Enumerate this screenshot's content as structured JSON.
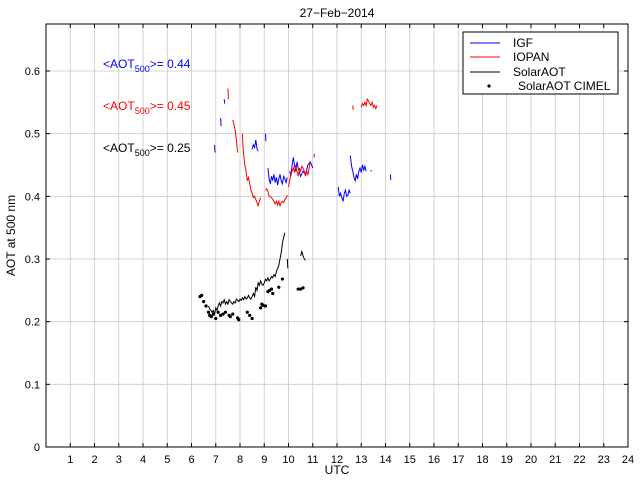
{
  "chart_data": {
    "type": "line",
    "title": "27−Feb−2014",
    "xlabel": "UTC",
    "ylabel": "AOT at 500 nm",
    "xlim": [
      0,
      24
    ],
    "ylim": [
      0,
      0.675
    ],
    "xticks": [
      1,
      2,
      3,
      4,
      5,
      6,
      7,
      8,
      9,
      10,
      11,
      12,
      13,
      14,
      15,
      16,
      17,
      18,
      19,
      20,
      21,
      22,
      23,
      24
    ],
    "yticks": [
      0,
      0.1,
      0.2,
      0.3,
      0.4,
      0.5,
      0.6
    ],
    "xtick_labels": [
      "1",
      "2",
      "3",
      "4",
      "5",
      "6",
      "7",
      "8",
      "9",
      "10",
      "11",
      "12",
      "13",
      "14",
      "15",
      "16",
      "17",
      "18",
      "19",
      "20",
      "21",
      "22",
      "23",
      "24"
    ],
    "ytick_labels": [
      "0",
      "0.1",
      "0.2",
      "0.3",
      "0.4",
      "0.5",
      "0.6"
    ],
    "grid": true,
    "legend_position": "top-right",
    "legend": [
      "IGF",
      "IOPAN",
      "SolarAOT",
      "SolarAOT CIMEL"
    ],
    "annotations": [
      {
        "prefix": "<AOT",
        "sub": "500",
        "suffix": ">= 0.44",
        "color": "#0000ff"
      },
      {
        "prefix": "<AOT",
        "sub": "500",
        "suffix": ">= 0.45",
        "color": "#ff0000"
      },
      {
        "prefix": "<AOT",
        "sub": "500",
        "suffix": ">= 0.25",
        "color": "#000000"
      }
    ],
    "series": [
      {
        "name": "IGF",
        "style": "line",
        "color": "#0000ff",
        "segments": [
          [
            [
              6.95,
              0.482
            ],
            [
              6.97,
              0.47
            ]
          ],
          [
            [
              7.2,
              0.525
            ],
            [
              7.22,
              0.512
            ]
          ],
          [
            [
              7.35,
              0.555
            ],
            [
              7.37,
              0.548
            ]
          ],
          [
            [
              8.5,
              0.475
            ],
            [
              8.55,
              0.482
            ],
            [
              8.6,
              0.478
            ],
            [
              8.65,
              0.49
            ],
            [
              8.7,
              0.476
            ],
            [
              8.75,
              0.472
            ]
          ],
          [
            [
              9.05,
              0.5
            ],
            [
              9.07,
              0.488
            ]
          ],
          [
            [
              9.15,
              0.445
            ],
            [
              9.2,
              0.428
            ],
            [
              9.25,
              0.42
            ],
            [
              9.3,
              0.432
            ],
            [
              9.35,
              0.426
            ],
            [
              9.4,
              0.435
            ],
            [
              9.45,
              0.422
            ],
            [
              9.5,
              0.43
            ],
            [
              9.55,
              0.418
            ],
            [
              9.6,
              0.428
            ],
            [
              9.65,
              0.435
            ],
            [
              9.7,
              0.425
            ],
            [
              9.75,
              0.42
            ],
            [
              9.8,
              0.432
            ],
            [
              9.85,
              0.428
            ],
            [
              9.9,
              0.422
            ],
            [
              9.95,
              0.43
            ]
          ],
          [
            [
              10.05,
              0.44
            ],
            [
              10.1,
              0.432
            ],
            [
              10.15,
              0.45
            ],
            [
              10.2,
              0.462
            ],
            [
              10.25,
              0.448
            ],
            [
              10.3,
              0.44
            ],
            [
              10.35,
              0.455
            ],
            [
              10.4,
              0.445
            ],
            [
              10.5,
              0.432
            ],
            [
              10.6,
              0.44
            ],
            [
              10.7,
              0.435
            ],
            [
              10.8,
              0.45
            ],
            [
              10.9,
              0.455
            ],
            [
              11.0,
              0.445
            ]
          ],
          [
            [
              12.05,
              0.415
            ],
            [
              12.1,
              0.4
            ],
            [
              12.15,
              0.405
            ],
            [
              12.2,
              0.398
            ],
            [
              12.25,
              0.392
            ],
            [
              12.3,
              0.405
            ],
            [
              12.35,
              0.41
            ],
            [
              12.4,
              0.4
            ],
            [
              12.45,
              0.402
            ],
            [
              12.5,
              0.41
            ],
            [
              12.55,
              0.405
            ]
          ],
          [
            [
              12.55,
              0.465
            ],
            [
              12.6,
              0.448
            ],
            [
              12.65,
              0.44
            ],
            [
              12.7,
              0.43
            ],
            [
              12.75,
              0.425
            ],
            [
              12.8,
              0.435
            ],
            [
              12.85,
              0.428
            ],
            [
              12.9,
              0.44
            ],
            [
              12.95,
              0.445
            ],
            [
              13.0,
              0.438
            ],
            [
              13.05,
              0.45
            ],
            [
              13.1,
              0.442
            ],
            [
              13.15,
              0.448
            ],
            [
              13.2,
              0.44
            ]
          ],
          [
            [
              13.4,
              0.442
            ],
            [
              13.42,
              0.44
            ]
          ],
          [
            [
              14.2,
              0.435
            ],
            [
              14.22,
              0.426
            ]
          ]
        ]
      },
      {
        "name": "IOPAN",
        "style": "line",
        "color": "#ff0000",
        "segments": [
          [
            [
              7.5,
              0.572
            ],
            [
              7.52,
              0.555
            ]
          ],
          [
            [
              7.7,
              0.522
            ],
            [
              7.75,
              0.515
            ],
            [
              7.8,
              0.505
            ],
            [
              7.85,
              0.49
            ],
            [
              7.9,
              0.47
            ]
          ],
          [
            [
              8.1,
              0.5
            ],
            [
              8.12,
              0.48
            ],
            [
              8.15,
              0.468
            ],
            [
              8.2,
              0.45
            ],
            [
              8.25,
              0.44
            ],
            [
              8.3,
              0.425
            ],
            [
              8.35,
              0.43
            ],
            [
              8.4,
              0.42
            ],
            [
              8.45,
              0.41
            ],
            [
              8.5,
              0.405
            ],
            [
              8.55,
              0.398
            ],
            [
              8.6,
              0.4
            ],
            [
              8.65,
              0.395
            ],
            [
              8.7,
              0.39
            ],
            [
              8.75,
              0.385
            ],
            [
              8.8,
              0.392
            ],
            [
              8.85,
              0.398
            ]
          ],
          [
            [
              9.05,
              0.41
            ],
            [
              9.1,
              0.412
            ],
            [
              9.15,
              0.408
            ],
            [
              9.2,
              0.4
            ],
            [
              9.3,
              0.398
            ],
            [
              9.35,
              0.395
            ],
            [
              9.4,
              0.392
            ],
            [
              9.45,
              0.388
            ],
            [
              9.5,
              0.392
            ],
            [
              9.55,
              0.386
            ],
            [
              9.6,
              0.392
            ],
            [
              9.65,
              0.385
            ],
            [
              9.7,
              0.39
            ],
            [
              9.75,
              0.392
            ],
            [
              9.8,
              0.39
            ],
            [
              9.85,
              0.395
            ],
            [
              9.9,
              0.398
            ],
            [
              9.95,
              0.402
            ]
          ],
          [
            [
              10.0,
              0.415
            ],
            [
              10.05,
              0.425
            ],
            [
              10.1,
              0.435
            ],
            [
              10.15,
              0.44
            ],
            [
              10.2,
              0.445
            ],
            [
              10.25,
              0.438
            ],
            [
              10.3,
              0.45
            ],
            [
              10.35,
              0.44
            ],
            [
              10.4,
              0.432
            ],
            [
              10.45,
              0.445
            ],
            [
              10.5,
              0.44
            ],
            [
              10.55,
              0.448
            ],
            [
              10.6,
              0.445
            ],
            [
              10.65,
              0.44
            ],
            [
              10.7,
              0.432
            ],
            [
              10.75,
              0.44
            ],
            [
              10.8,
              0.435
            ],
            [
              10.85,
              0.445
            ],
            [
              10.9,
              0.455
            ]
          ],
          [
            [
              11.05,
              0.462
            ],
            [
              11.07,
              0.468
            ]
          ],
          [
            [
              12.65,
              0.545
            ],
            [
              12.67,
              0.538
            ]
          ],
          [
            [
              13.0,
              0.542
            ],
            [
              13.05,
              0.548
            ],
            [
              13.1,
              0.545
            ],
            [
              13.15,
              0.55
            ],
            [
              13.2,
              0.545
            ],
            [
              13.25,
              0.555
            ],
            [
              13.3,
              0.552
            ],
            [
              13.35,
              0.548
            ],
            [
              13.4,
              0.545
            ],
            [
              13.45,
              0.55
            ],
            [
              13.5,
              0.542
            ],
            [
              13.55,
              0.545
            ],
            [
              13.6,
              0.54
            ],
            [
              13.65,
              0.545
            ]
          ]
        ]
      },
      {
        "name": "SolarAOT",
        "style": "line",
        "color": "#000000",
        "segments": [
          [
            [
              6.7,
              0.225
            ],
            [
              6.75,
              0.22
            ],
            [
              6.8,
              0.218
            ],
            [
              6.85,
              0.215
            ],
            [
              6.9,
              0.218
            ],
            [
              6.95,
              0.212
            ],
            [
              7.0,
              0.222
            ],
            [
              7.05,
              0.218
            ],
            [
              7.1,
              0.225
            ],
            [
              7.15,
              0.23
            ],
            [
              7.2,
              0.225
            ],
            [
              7.25,
              0.232
            ],
            [
              7.3,
              0.23
            ],
            [
              7.35,
              0.235
            ],
            [
              7.4,
              0.228
            ],
            [
              7.45,
              0.232
            ],
            [
              7.5,
              0.228
            ],
            [
              7.55,
              0.235
            ],
            [
              7.6,
              0.232
            ],
            [
              7.65,
              0.23
            ],
            [
              7.7,
              0.228
            ],
            [
              7.75,
              0.232
            ],
            [
              7.8,
              0.23
            ],
            [
              7.85,
              0.236
            ],
            [
              7.9,
              0.234
            ],
            [
              7.95,
              0.232
            ],
            [
              8.0,
              0.236
            ],
            [
              8.05,
              0.234
            ],
            [
              8.1,
              0.238
            ],
            [
              8.15,
              0.235
            ],
            [
              8.2,
              0.24
            ],
            [
              8.25,
              0.236
            ],
            [
              8.3,
              0.238
            ],
            [
              8.35,
              0.242
            ],
            [
              8.4,
              0.238
            ],
            [
              8.45,
              0.236
            ],
            [
              8.5,
              0.24
            ],
            [
              8.55,
              0.245
            ],
            [
              8.6,
              0.24
            ],
            [
              8.65,
              0.255
            ],
            [
              8.7,
              0.25
            ],
            [
              8.75,
              0.262
            ],
            [
              8.8,
              0.258
            ],
            [
              8.85,
              0.265
            ],
            [
              8.9,
              0.26
            ],
            [
              8.95,
              0.258
            ],
            [
              9.0,
              0.262
            ],
            [
              9.05,
              0.268
            ],
            [
              9.1,
              0.265
            ],
            [
              9.15,
              0.27
            ],
            [
              9.2,
              0.265
            ],
            [
              9.25,
              0.268
            ],
            [
              9.3,
              0.272
            ],
            [
              9.35,
              0.27
            ],
            [
              9.4,
              0.275
            ],
            [
              9.45,
              0.272
            ],
            [
              9.5,
              0.28
            ],
            [
              9.55,
              0.285
            ],
            [
              9.6,
              0.29
            ],
            [
              9.65,
              0.3
            ],
            [
              9.7,
              0.31
            ],
            [
              9.75,
              0.325
            ],
            [
              9.8,
              0.335
            ],
            [
              9.85,
              0.342
            ]
          ],
          [
            [
              9.95,
              0.3
            ],
            [
              9.97,
              0.285
            ]
          ],
          [
            [
              10.5,
              0.305
            ],
            [
              10.55,
              0.312
            ],
            [
              10.6,
              0.305
            ],
            [
              10.65,
              0.3
            ],
            [
              10.7,
              0.298
            ]
          ]
        ]
      },
      {
        "name": "SolarAOT CIMEL",
        "style": "markers",
        "color": "#000000",
        "points": [
          [
            6.35,
            0.24
          ],
          [
            6.42,
            0.242
          ],
          [
            6.5,
            0.232
          ],
          [
            6.6,
            0.225
          ],
          [
            6.7,
            0.215
          ],
          [
            6.75,
            0.21
          ],
          [
            6.82,
            0.208
          ],
          [
            6.9,
            0.212
          ],
          [
            7.0,
            0.205
          ],
          [
            7.1,
            0.215
          ],
          [
            7.2,
            0.21
          ],
          [
            7.3,
            0.212
          ],
          [
            7.4,
            0.215
          ],
          [
            7.55,
            0.21
          ],
          [
            7.6,
            0.208
          ],
          [
            7.7,
            0.212
          ],
          [
            7.9,
            0.206
          ],
          [
            7.95,
            0.203
          ],
          [
            8.3,
            0.215
          ],
          [
            8.4,
            0.21
          ],
          [
            8.5,
            0.205
          ],
          [
            8.85,
            0.222
          ],
          [
            8.9,
            0.228
          ],
          [
            8.95,
            0.226
          ],
          [
            9.05,
            0.225
          ],
          [
            9.15,
            0.248
          ],
          [
            9.22,
            0.25
          ],
          [
            9.3,
            0.252
          ],
          [
            9.35,
            0.245
          ],
          [
            9.6,
            0.255
          ],
          [
            9.75,
            0.268
          ],
          [
            10.4,
            0.252
          ],
          [
            10.5,
            0.252
          ],
          [
            10.6,
            0.254
          ]
        ]
      }
    ]
  }
}
